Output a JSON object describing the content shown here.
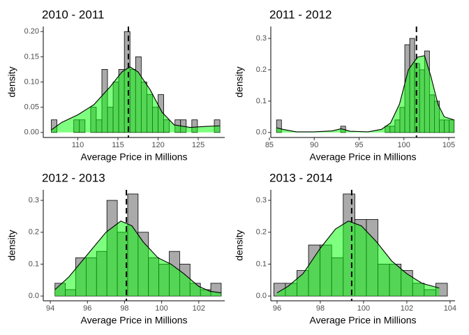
{
  "chart_data": [
    {
      "type": "histogram",
      "title": "2010 - 2011",
      "x_label": "Average Price in Millions",
      "y_label": "density",
      "bins": [
        106.7,
        107.4,
        108.1,
        108.8,
        109.5,
        110.2,
        110.9,
        111.6,
        112.3,
        113.0,
        113.7,
        114.4,
        115.1,
        115.8,
        116.5,
        117.2,
        117.9,
        118.6,
        119.3,
        120.0,
        120.7,
        121.4,
        122.1,
        122.8,
        123.5,
        124.2,
        124.9,
        125.6,
        126.3,
        127.0,
        127.7
      ],
      "values": [
        0.025,
        0,
        0,
        0,
        0.025,
        0.025,
        0,
        0.05,
        0.025,
        0.125,
        0.05,
        0.1,
        0.125,
        0.2,
        0.125,
        0.15,
        0.1,
        0.075,
        0.05,
        0.075,
        0.025,
        0,
        0.025,
        0.025,
        0,
        0.025,
        0,
        0,
        0,
        0.025
      ],
      "density_x": [
        106.7,
        108,
        110,
        112,
        114,
        115.5,
        116.5,
        117.5,
        119,
        120.5,
        122,
        124,
        126,
        127.7
      ],
      "density_y": [
        0.005,
        0.02,
        0.035,
        0.055,
        0.09,
        0.12,
        0.13,
        0.12,
        0.085,
        0.04,
        0.015,
        0.01,
        0.012,
        0.013
      ],
      "mean": 116.3,
      "bar_color": "#aaaaaa",
      "density_color": "#00ff00",
      "xlim": [
        105.7,
        128.3
      ],
      "xticks": [
        110,
        115,
        120,
        125
      ],
      "ylim": [
        -0.01,
        0.21
      ],
      "yticks": [
        {
          "value": 0,
          "label": "0.00"
        },
        {
          "value": 0.05,
          "label": "0.05"
        },
        {
          "value": 0.1,
          "label": "0.10"
        },
        {
          "value": 0.15,
          "label": "0.15"
        },
        {
          "value": 0.2,
          "label": "0.20"
        }
      ]
    },
    {
      "type": "histogram",
      "title": "2011 - 2012",
      "x_label": "Average Price in Millions",
      "y_label": "density",
      "bins": [
        85.8,
        86.35,
        86.9,
        87.45,
        88.0,
        88.55,
        89.1,
        89.65,
        90.2,
        90.75,
        91.3,
        91.85,
        92.4,
        92.95,
        93.5,
        94.05,
        94.6,
        95.15,
        95.7,
        96.25,
        96.8,
        97.35,
        97.9,
        98.45,
        99.0,
        99.55,
        100.1,
        100.65,
        101.2,
        101.75,
        102.3,
        102.85,
        103.4,
        103.95,
        104.5,
        105.05,
        105.6
      ],
      "values": [
        0.04,
        0,
        0,
        0,
        0,
        0,
        0,
        0,
        0,
        0,
        0,
        0,
        0,
        0.02,
        0,
        0,
        0,
        0,
        0,
        0,
        0,
        0,
        0.02,
        0.02,
        0.04,
        0.08,
        0.28,
        0.3,
        0.22,
        0.2,
        0.26,
        0.12,
        0.1,
        0.04,
        0.04,
        0.04
      ],
      "density_x": [
        85.8,
        86.5,
        88,
        90,
        92,
        93,
        94,
        96,
        97.5,
        98.5,
        99.5,
        100.5,
        101.5,
        102.3,
        103,
        103.8,
        104.5,
        105.6
      ],
      "density_y": [
        0.015,
        0.01,
        0.002,
        0.002,
        0.005,
        0.012,
        0.004,
        0.002,
        0.01,
        0.03,
        0.09,
        0.2,
        0.24,
        0.245,
        0.18,
        0.09,
        0.05,
        0.04
      ],
      "mean": 101.4,
      "bar_color": "#aaaaaa",
      "density_color": "#00ff00",
      "xlim": [
        85.16,
        105.7
      ],
      "xticks": [
        85,
        90,
        95,
        100,
        105
      ],
      "ylim": [
        -0.016,
        0.338
      ],
      "yticks": [
        {
          "value": 0,
          "label": "0.0"
        },
        {
          "value": 0.1,
          "label": "0.1"
        },
        {
          "value": 0.2,
          "label": "0.2"
        },
        {
          "value": 0.3,
          "label": "0.3"
        }
      ]
    },
    {
      "type": "histogram",
      "title": "2012 - 2013",
      "x_label": "Average Price in Millions",
      "y_label": "density",
      "bins": [
        94.25,
        94.81,
        95.37,
        95.93,
        96.49,
        97.05,
        97.61,
        98.17,
        98.73,
        99.29,
        99.85,
        100.41,
        100.97,
        101.53,
        102.09,
        102.65,
        103.21
      ],
      "values": [
        0.04,
        0.02,
        0.12,
        0.12,
        0.14,
        0.3,
        0.2,
        0.32,
        0.2,
        0.12,
        0.1,
        0.14,
        0.1,
        0.04,
        0.02,
        0.04
      ],
      "density_x": [
        94.25,
        95,
        96,
        97,
        97.8,
        98.4,
        99,
        99.8,
        100.5,
        101.2,
        102,
        102.6,
        103.2
      ],
      "density_y": [
        0.02,
        0.06,
        0.13,
        0.2,
        0.235,
        0.22,
        0.17,
        0.12,
        0.1,
        0.07,
        0.03,
        0.015,
        0.01
      ],
      "mean": 98.1,
      "bar_color": "#aaaaaa",
      "density_color": "#00ff00",
      "xlim": [
        93.62,
        103.4
      ],
      "xticks": [
        94,
        96,
        98,
        100,
        102
      ],
      "ylim": [
        -0.015,
        0.333
      ],
      "yticks": [
        {
          "value": 0,
          "label": "0.0"
        },
        {
          "value": 0.1,
          "label": "0.1"
        },
        {
          "value": 0.2,
          "label": "0.2"
        },
        {
          "value": 0.3,
          "label": "0.3"
        }
      ]
    },
    {
      "type": "histogram",
      "title": "2013 - 2014",
      "x_label": "Average Price in Millions",
      "y_label": "density",
      "bins": [
        95.85,
        96.385,
        96.92,
        97.455,
        97.99,
        98.525,
        99.06,
        99.595,
        100.13,
        100.665,
        101.2,
        101.735,
        102.27,
        102.805,
        103.34,
        103.875
      ],
      "values": [
        0.04,
        0.04,
        0.08,
        0.16,
        0.16,
        0.12,
        0.32,
        0.24,
        0.24,
        0.1,
        0.1,
        0.08,
        0.04,
        0.02,
        0.04
      ],
      "density_x": [
        96,
        96.5,
        97.2,
        98,
        98.7,
        99.3,
        99.9,
        100.6,
        101.3,
        102,
        102.7,
        103.5
      ],
      "density_y": [
        0.01,
        0.03,
        0.07,
        0.15,
        0.21,
        0.235,
        0.22,
        0.17,
        0.11,
        0.07,
        0.04,
        0.025
      ],
      "mean": 99.45,
      "bar_color": "#aaaaaa",
      "density_color": "#00ff00",
      "xlim": [
        95.71,
        104.23
      ],
      "xticks": [
        96,
        98,
        100,
        102,
        104
      ],
      "ylim": [
        -0.015,
        0.333
      ],
      "yticks": [
        {
          "value": 0,
          "label": "0.0"
        },
        {
          "value": 0.1,
          "label": "0.1"
        },
        {
          "value": 0.2,
          "label": "0.2"
        },
        {
          "value": 0.3,
          "label": "0.3"
        }
      ]
    }
  ]
}
